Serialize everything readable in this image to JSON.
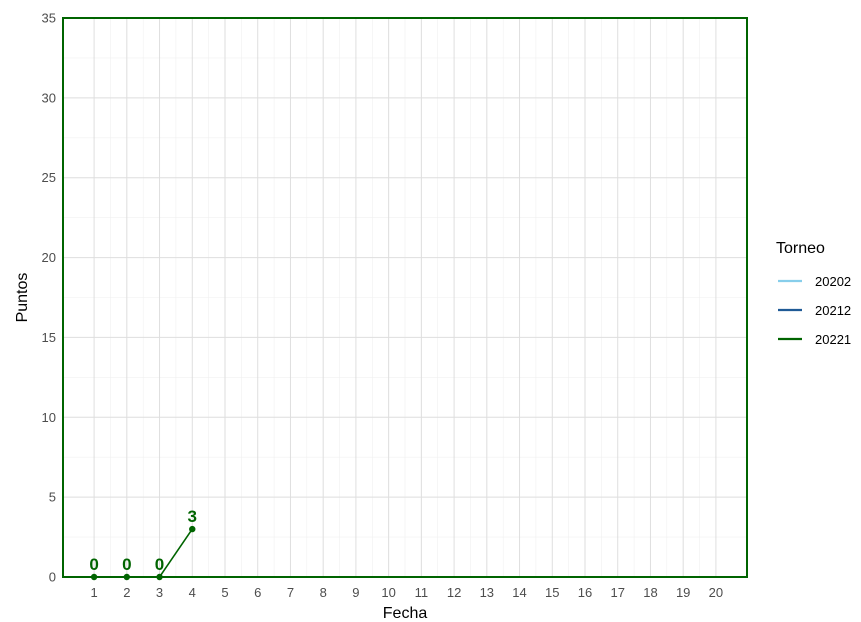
{
  "chart_data": {
    "type": "line",
    "xlabel": "Fecha",
    "ylabel": "Puntos",
    "x_ticks": [
      "1",
      "2",
      "3",
      "4",
      "5",
      "6",
      "7",
      "8",
      "9",
      "10",
      "11",
      "12",
      "13",
      "14",
      "15",
      "16",
      "17",
      "18",
      "19",
      "20"
    ],
    "y_ticks": [
      "0",
      "5",
      "10",
      "15",
      "20",
      "25",
      "30",
      "35"
    ],
    "xlim": [
      0.05,
      20.95
    ],
    "ylim": [
      0,
      35
    ],
    "grid": true,
    "legend_title": "Torneo",
    "legend_position": "right",
    "series": [
      {
        "name": "20202",
        "color": "#87ceeb",
        "x": [],
        "y": [],
        "labels": []
      },
      {
        "name": "20212",
        "color": "#1f5a96",
        "x": [],
        "y": [],
        "labels": []
      },
      {
        "name": "20221",
        "color": "#006400",
        "x": [
          1,
          2,
          3,
          4
        ],
        "y": [
          0,
          0,
          0,
          3
        ],
        "labels": [
          "0",
          "0",
          "0",
          "3"
        ]
      }
    ],
    "reference_lines": [
      {
        "axis": "y",
        "value": 0,
        "color": "#006400"
      }
    ]
  }
}
